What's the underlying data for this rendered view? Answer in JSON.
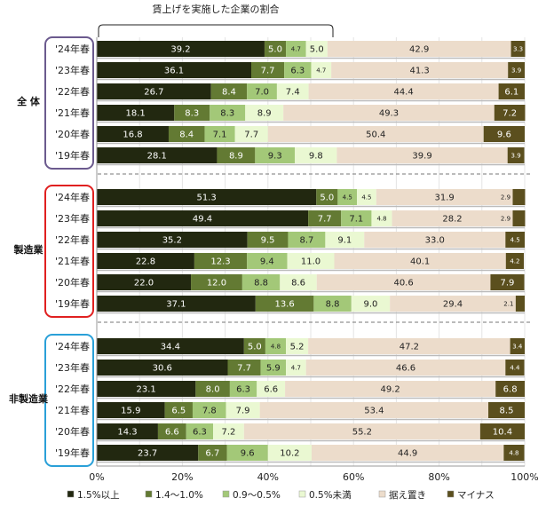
{
  "chart_data": {
    "type": "bar",
    "stacked": true,
    "orientation": "horizontal",
    "annotation": "賃上げを実施した企業の割合",
    "xlim": [
      0,
      100
    ],
    "xticks": [
      "0%",
      "20%",
      "40%",
      "60%",
      "80%",
      "100%"
    ],
    "legend_position": "bottom",
    "series": [
      {
        "name": "1.5%以上",
        "color": "#222810"
      },
      {
        "name": "1.4～1.0%",
        "color": "#637a33"
      },
      {
        "name": "0.9～0.5%",
        "color": "#a3c878"
      },
      {
        "name": "0.5%未満",
        "color": "#eaf8d2"
      },
      {
        "name": "据え置き",
        "color": "#ecdccb"
      },
      {
        "name": "マイナス",
        "color": "#5b4f1e"
      }
    ],
    "groups": [
      {
        "name": "全 体",
        "bracket_color": "#6b5a8e",
        "rows": [
          {
            "label": "'24年春",
            "values": [
              39.2,
              5.0,
              4.7,
              5.0,
              42.9,
              3.3
            ]
          },
          {
            "label": "'23年春",
            "values": [
              36.1,
              7.7,
              6.3,
              4.7,
              41.3,
              3.9
            ]
          },
          {
            "label": "'22年春",
            "values": [
              26.7,
              8.4,
              7.0,
              7.4,
              44.4,
              6.1
            ]
          },
          {
            "label": "'21年春",
            "values": [
              18.1,
              8.3,
              8.3,
              8.9,
              49.3,
              7.2
            ]
          },
          {
            "label": "'20年春",
            "values": [
              16.8,
              8.4,
              7.1,
              7.7,
              50.4,
              9.6
            ]
          },
          {
            "label": "'19年春",
            "values": [
              28.1,
              8.9,
              9.3,
              9.8,
              39.9,
              3.9
            ]
          }
        ]
      },
      {
        "name": "製造業",
        "bracket_color": "#e02020",
        "rows": [
          {
            "label": "'24年春",
            "values": [
              51.3,
              5.0,
              4.5,
              4.5,
              31.9,
              2.9
            ]
          },
          {
            "label": "'23年春",
            "values": [
              49.4,
              7.7,
              7.1,
              4.8,
              28.2,
              2.9
            ]
          },
          {
            "label": "'22年春",
            "values": [
              35.2,
              9.5,
              8.7,
              9.1,
              33.0,
              4.5
            ]
          },
          {
            "label": "'21年春",
            "values": [
              22.8,
              12.3,
              9.4,
              11.0,
              40.1,
              4.2
            ]
          },
          {
            "label": "'20年春",
            "values": [
              22.0,
              12.0,
              8.8,
              8.6,
              40.6,
              7.9
            ]
          },
          {
            "label": "'19年春",
            "values": [
              37.1,
              13.6,
              8.8,
              9.0,
              29.4,
              2.1
            ]
          }
        ]
      },
      {
        "name": "非製造業",
        "bracket_color": "#2aa0d8",
        "rows": [
          {
            "label": "'24年春",
            "values": [
              34.4,
              5.0,
              4.8,
              5.2,
              47.2,
              3.4
            ]
          },
          {
            "label": "'23年春",
            "values": [
              30.6,
              7.7,
              5.9,
              4.7,
              46.6,
              4.4
            ]
          },
          {
            "label": "'22年春",
            "values": [
              23.1,
              8.0,
              6.3,
              6.6,
              49.2,
              6.8
            ]
          },
          {
            "label": "'21年春",
            "values": [
              15.9,
              6.5,
              7.8,
              7.9,
              53.4,
              8.5
            ]
          },
          {
            "label": "'20年春",
            "values": [
              14.3,
              6.6,
              6.3,
              7.2,
              55.2,
              10.4
            ]
          },
          {
            "label": "'19年春",
            "values": [
              23.7,
              6.7,
              9.6,
              10.2,
              44.9,
              4.8
            ]
          }
        ]
      }
    ]
  }
}
